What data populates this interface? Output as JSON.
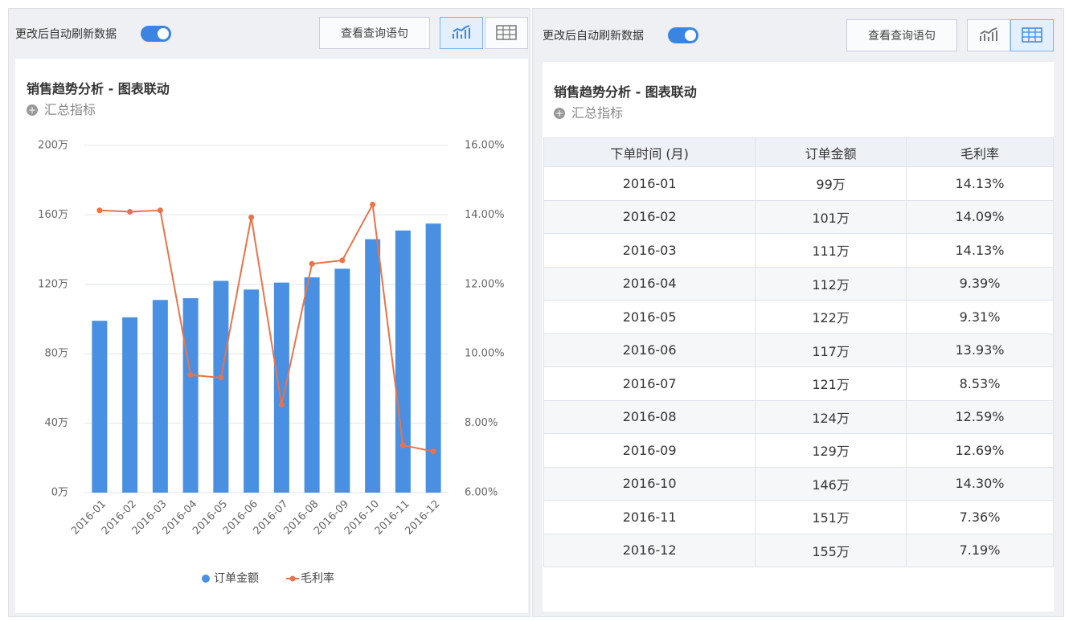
{
  "left": {
    "toggle_label": "更改后自动刷新数据",
    "query_button": "查看查询语句",
    "title": "销售趋势分析 - 图表联动",
    "summary": "汇总指标"
  },
  "right": {
    "toggle_label": "更改后自动刷新数据",
    "query_button": "查看查询语句",
    "title": "销售趋势分析 - 图表联动",
    "summary": "汇总指标"
  },
  "chart_data": {
    "type": "bar-line",
    "categories": [
      "2016-01",
      "2016-02",
      "2016-03",
      "2016-04",
      "2016-05",
      "2016-06",
      "2016-07",
      "2016-08",
      "2016-09",
      "2016-10",
      "2016-11",
      "2016-12"
    ],
    "series": [
      {
        "name": "订单金额",
        "color": "#4a90e2",
        "type": "bar",
        "values": [
          99,
          101,
          111,
          112,
          122,
          117,
          121,
          124,
          129,
          146,
          151,
          155
        ]
      },
      {
        "name": "毛利率",
        "color": "#e8734a",
        "type": "line",
        "axis": "y2",
        "values": [
          14.13,
          14.09,
          14.13,
          9.39,
          9.31,
          13.93,
          8.53,
          12.59,
          12.69,
          14.3,
          7.36,
          7.19
        ]
      }
    ],
    "ylim": [
      0,
      200
    ],
    "yticks": [
      {
        "value": 0,
        "label": "0万"
      },
      {
        "value": 40,
        "label": "40万"
      },
      {
        "value": 80,
        "label": "80万"
      },
      {
        "value": 120,
        "label": "120万"
      },
      {
        "value": 160,
        "label": "160万"
      },
      {
        "value": 200,
        "label": "200万"
      }
    ],
    "y2lim": [
      6,
      16
    ],
    "y2ticks": [
      {
        "value": 6,
        "label": "6.00%"
      },
      {
        "value": 8,
        "label": "8.00%"
      },
      {
        "value": 10,
        "label": "10.00%"
      },
      {
        "value": 12,
        "label": "12.00%"
      },
      {
        "value": 14,
        "label": "14.00%"
      },
      {
        "value": 16,
        "label": "16.00%"
      }
    ],
    "grid": true,
    "legend": "bottom"
  },
  "table": {
    "headers": [
      "下单时间 (月)",
      "订单金额",
      "毛利率"
    ],
    "rows": [
      [
        "2016-01",
        "99万",
        "14.13%"
      ],
      [
        "2016-02",
        "101万",
        "14.09%"
      ],
      [
        "2016-03",
        "111万",
        "14.13%"
      ],
      [
        "2016-04",
        "112万",
        "9.39%"
      ],
      [
        "2016-05",
        "122万",
        "9.31%"
      ],
      [
        "2016-06",
        "117万",
        "13.93%"
      ],
      [
        "2016-07",
        "121万",
        "8.53%"
      ],
      [
        "2016-08",
        "124万",
        "12.59%"
      ],
      [
        "2016-09",
        "129万",
        "12.69%"
      ],
      [
        "2016-10",
        "146万",
        "14.30%"
      ],
      [
        "2016-11",
        "151万",
        "7.36%"
      ],
      [
        "2016-12",
        "155万",
        "7.19%"
      ]
    ]
  }
}
